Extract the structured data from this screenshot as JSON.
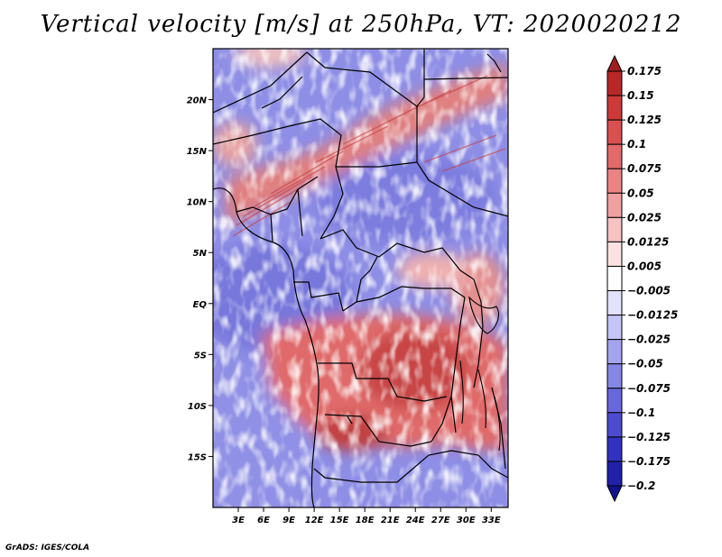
{
  "title": "Vertical velocity [m/s] at 250hPa, VT: 2020020212",
  "credit": "GrADS: IGES/COLA",
  "map": {
    "y_ticks": [
      {
        "label": "20N",
        "lat": 20
      },
      {
        "label": "15N",
        "lat": 15
      },
      {
        "label": "10N",
        "lat": 10
      },
      {
        "label": "5N",
        "lat": 5
      },
      {
        "label": "EQ",
        "lat": 0
      },
      {
        "label": "5S",
        "lat": -5
      },
      {
        "label": "10S",
        "lat": -10
      },
      {
        "label": "15S",
        "lat": -15
      }
    ],
    "x_ticks": [
      {
        "label": "3E",
        "lon": 3
      },
      {
        "label": "6E",
        "lon": 6
      },
      {
        "label": "9E",
        "lon": 9
      },
      {
        "label": "12E",
        "lon": 12
      },
      {
        "label": "15E",
        "lon": 15
      },
      {
        "label": "18E",
        "lon": 18
      },
      {
        "label": "21E",
        "lon": 21
      },
      {
        "label": "24E",
        "lon": 24
      },
      {
        "label": "27E",
        "lon": 27
      },
      {
        "label": "30E",
        "lon": 30
      },
      {
        "label": "33E",
        "lon": 33
      }
    ],
    "lon_range": [
      0,
      35
    ],
    "lat_range": [
      -20,
      25
    ]
  },
  "colorbar": {
    "labels": [
      "0.175",
      "0.15",
      "0.125",
      "0.1",
      "0.075",
      "0.05",
      "0.025",
      "0.0125",
      "0.005",
      "−0.005",
      "−0.0125",
      "−0.025",
      "−0.05",
      "−0.075",
      "−0.1",
      "−0.125",
      "−0.175",
      "−0.2"
    ],
    "colors": [
      "#a01e1e",
      "#b92828",
      "#cc3a3a",
      "#d95050",
      "#e26a6a",
      "#ea8484",
      "#f0a0a0",
      "#f6c2c2",
      "#fbe1e1",
      "#ffffff",
      "#e2e2fb",
      "#c4c4f6",
      "#a4a4ee",
      "#8686e6",
      "#6868dc",
      "#4c4cd0",
      "#3232c0",
      "#2020a8",
      "#12128c"
    ]
  }
}
